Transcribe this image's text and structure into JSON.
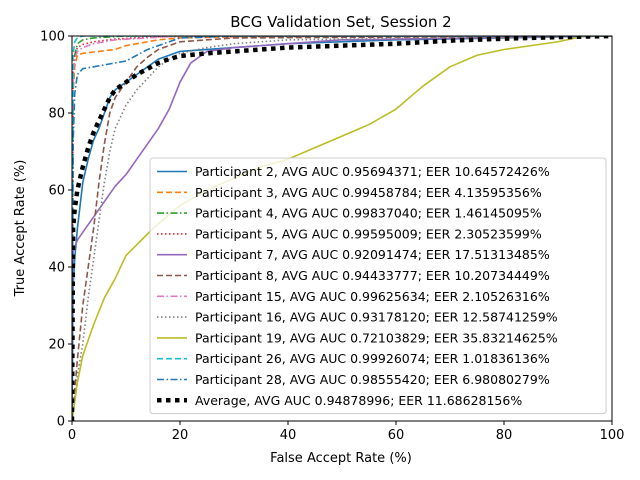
{
  "chart_data": {
    "type": "line",
    "title": "BCG Validation Set, Session 2",
    "xlabel": "False Accept Rate (%)",
    "ylabel": "True Accept Rate (%)",
    "xlim": [
      0,
      100
    ],
    "ylim": [
      0,
      100
    ],
    "xticks": [
      "0",
      "20",
      "40",
      "60",
      "80",
      "100"
    ],
    "yticks": [
      "0",
      "20",
      "40",
      "60",
      "80",
      "100"
    ],
    "grid": false,
    "legend_position": "lower-right",
    "series": [
      {
        "name": "Participant 2, AVG AUC 0.95694371; EER 10.64572426%",
        "color": "#1f77b4",
        "dash": "solid",
        "x": [
          0,
          0.2,
          0.5,
          1,
          2,
          3,
          4,
          5,
          6,
          7,
          8,
          10,
          12,
          14,
          16,
          18,
          20,
          25,
          30,
          40,
          60,
          80,
          100
        ],
        "y": [
          0,
          35,
          42,
          50,
          62,
          68,
          73,
          76,
          80,
          84,
          86,
          88,
          90,
          92,
          94,
          95,
          96,
          96.5,
          97,
          98,
          99,
          99.5,
          100
        ]
      },
      {
        "name": "Participant 3, AVG AUC 0.99458784; EER 4.13595356%",
        "color": "#ff7f0e",
        "dash": "dashed",
        "x": [
          0,
          0.2,
          0.5,
          1,
          2,
          5,
          8,
          10,
          12,
          14,
          16,
          20,
          30,
          50,
          100
        ],
        "y": [
          0,
          85,
          92,
          95,
          95.5,
          96,
          96.5,
          97.5,
          98,
          98.5,
          99,
          99.5,
          99.8,
          100,
          100
        ]
      },
      {
        "name": "Participant 4, AVG AUC 0.99837040; EER 1.46145095%",
        "color": "#2ca02c",
        "dash": "dashdot",
        "x": [
          0,
          0.2,
          0.5,
          1,
          2,
          4,
          10,
          100
        ],
        "y": [
          0,
          88,
          95,
          98,
          99,
          99.5,
          100,
          100
        ]
      },
      {
        "name": "Participant 5, AVG AUC 0.99595009; EER 2.30523599%",
        "color": "#d62728",
        "dash": "dotted",
        "x": [
          0,
          0.2,
          0.5,
          1,
          2,
          4,
          8,
          15,
          100
        ],
        "y": [
          0,
          90,
          95,
          97,
          97.8,
          98.5,
          99.2,
          99.8,
          100
        ]
      },
      {
        "name": "Participant 7, AVG AUC 0.92091474; EER 17.51313485%",
        "color": "#9467bd",
        "dash": "solid",
        "x": [
          0,
          0.2,
          1,
          2,
          4,
          6,
          8,
          10,
          12,
          14,
          16,
          18,
          20,
          22,
          25,
          30,
          40,
          50,
          100
        ],
        "y": [
          0,
          44,
          47,
          49,
          53,
          57,
          61,
          64,
          68,
          72,
          76,
          81,
          88,
          93,
          96,
          97,
          98,
          99,
          100
        ]
      },
      {
        "name": "Participant 8, AVG AUC 0.94433777; EER 10.20734449%",
        "color": "#8c564b",
        "dash": "dashed",
        "x": [
          0,
          1,
          2,
          3,
          4,
          5,
          6,
          7,
          8,
          10,
          12,
          14,
          16,
          18,
          20,
          25,
          30,
          100
        ],
        "y": [
          0,
          16,
          30,
          40,
          50,
          62,
          72,
          80,
          84,
          88,
          92,
          94.5,
          96.5,
          97.5,
          98.5,
          99,
          99.5,
          100
        ]
      },
      {
        "name": "Participant 15, AVG AUC 0.99625634; EER 2.10526316%",
        "color": "#e377c2",
        "dash": "dashdot",
        "x": [
          0,
          0.2,
          0.5,
          1,
          2,
          4,
          8,
          14,
          20,
          100
        ],
        "y": [
          0,
          88,
          94,
          96,
          97,
          98,
          99,
          99.5,
          100,
          100
        ]
      },
      {
        "name": "Participant 16, AVG AUC 0.93178120; EER 12.58741259%",
        "color": "#7f7f7f",
        "dash": "dotted",
        "x": [
          0,
          1,
          2,
          3,
          4,
          5,
          6,
          7,
          8,
          10,
          12,
          14,
          16,
          18,
          20,
          25,
          30,
          40,
          100
        ],
        "y": [
          0,
          12,
          20,
          32,
          42,
          52,
          62,
          70,
          76,
          82,
          86,
          89,
          92,
          94,
          95.5,
          97,
          98,
          99,
          100
        ]
      },
      {
        "name": "Participant 19, AVG AUC 0.72103829; EER 35.83214625%",
        "color": "#bcbd22",
        "dash": "solid",
        "x": [
          0,
          1,
          2,
          4,
          6,
          8,
          10,
          15,
          20,
          25,
          30,
          35,
          40,
          45,
          50,
          55,
          60,
          65,
          70,
          75,
          80,
          85,
          90,
          95,
          100
        ],
        "y": [
          0,
          10,
          17,
          25,
          32,
          37,
          43,
          50,
          56,
          60,
          63,
          66,
          68,
          71,
          74,
          77,
          81,
          87,
          92,
          95,
          96.5,
          97.5,
          98.5,
          100,
          100
        ]
      },
      {
        "name": "Participant 26, AVG AUC 0.99926074; EER 1.01836136%",
        "color": "#17becf",
        "dash": "dashed",
        "x": [
          0,
          0.2,
          0.5,
          1,
          2,
          100
        ],
        "y": [
          0,
          95,
          98.5,
          99.5,
          100,
          100
        ]
      },
      {
        "name": "Participant 28, AVG AUC 0.98555420; EER 6.98080279%",
        "color": "#1f77b4",
        "dash": "dashdot",
        "x": [
          0,
          0.2,
          0.5,
          1,
          2,
          4,
          6,
          8,
          10,
          12,
          14,
          16,
          18,
          20,
          30,
          100
        ],
        "y": [
          0,
          72,
          85,
          90,
          91.5,
          92,
          92.5,
          93,
          93.5,
          95,
          96.5,
          97.5,
          98.5,
          99.5,
          100,
          100
        ]
      },
      {
        "name": "Average, AVG AUC 0.94878996; EER 11.68628156%",
        "color": "#000000",
        "dash": "thickdot",
        "x": [
          0,
          0.2,
          0.5,
          1,
          2,
          3,
          4,
          5,
          6,
          7,
          8,
          10,
          12,
          14,
          16,
          18,
          20,
          25,
          30,
          40,
          50,
          60,
          70,
          80,
          90,
          100
        ],
        "y": [
          0,
          50,
          55,
          60,
          66,
          71,
          75,
          78,
          81,
          84,
          86,
          88,
          90,
          91.5,
          93,
          94,
          94.8,
          95.5,
          96,
          97,
          97.5,
          98,
          98.8,
          99.3,
          99.7,
          100
        ]
      }
    ]
  }
}
